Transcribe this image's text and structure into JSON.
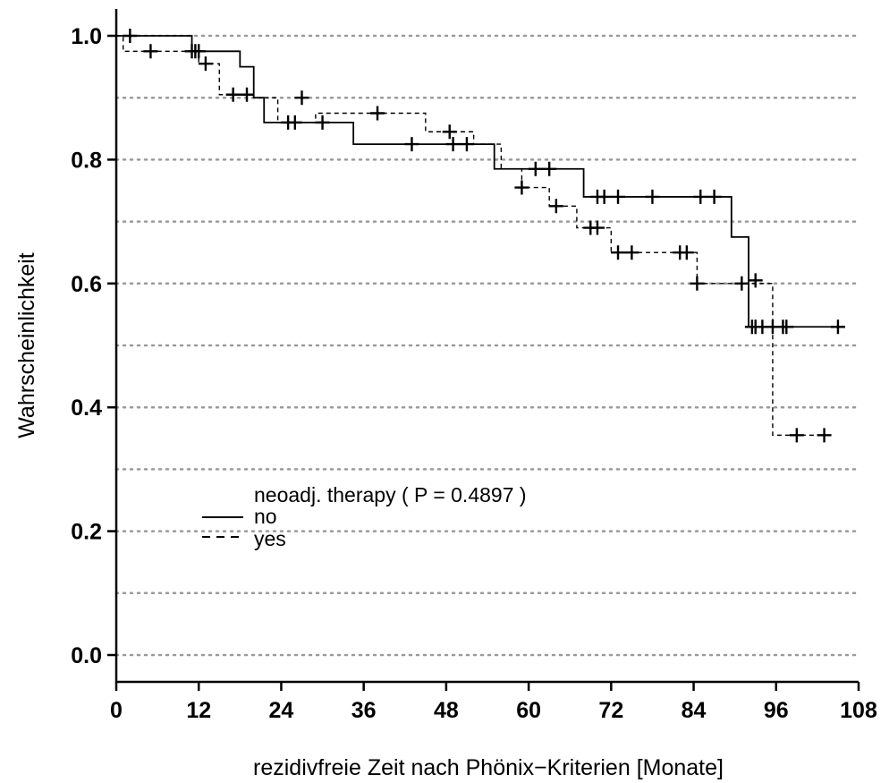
{
  "chart_data": {
    "type": "line",
    "subtype": "kaplan-meier",
    "xlabel": "rezidivfreie Zeit nach Phönix−Kriterien [Monate]",
    "ylabel": "Wahrscheinlichkeit",
    "xlim": [
      0,
      108
    ],
    "ylim": [
      0.0,
      1.0
    ],
    "xticks": [
      0,
      12,
      24,
      36,
      48,
      60,
      72,
      84,
      96,
      108
    ],
    "xtick_labels": [
      "0",
      "12",
      "24",
      "36",
      "48",
      "60",
      "72",
      "84",
      "96",
      "108"
    ],
    "yticks": [
      0.0,
      0.2,
      0.4,
      0.6,
      0.8,
      1.0
    ],
    "ytick_labels": [
      "0.0",
      "0.2",
      "0.4",
      "0.6",
      "0.8",
      "1.0"
    ],
    "grid": "horizontal dotted at every 0.1",
    "legend": {
      "title": "neoadj. therapy ( P = 0.4897 )",
      "placement": "lower-left",
      "entries": [
        {
          "label": "no",
          "style": "solid"
        },
        {
          "label": "yes",
          "style": "dashed"
        }
      ]
    },
    "series": [
      {
        "name": "no",
        "style": "solid",
        "steps": [
          [
            0,
            1.0
          ],
          [
            11,
            0.975
          ],
          [
            18,
            0.95
          ],
          [
            20,
            0.9
          ],
          [
            21.5,
            0.86
          ],
          [
            34.5,
            0.825
          ],
          [
            55,
            0.785
          ],
          [
            68,
            0.74
          ],
          [
            89.5,
            0.675
          ],
          [
            92,
            0.53
          ],
          [
            105,
            0.53
          ]
        ],
        "censored": [
          [
            2,
            1.0
          ],
          [
            11.5,
            0.975
          ],
          [
            12,
            0.975
          ],
          [
            70,
            0.74
          ],
          [
            71,
            0.74
          ],
          [
            73,
            0.74
          ],
          [
            78,
            0.74
          ],
          [
            85,
            0.74
          ],
          [
            87,
            0.74
          ],
          [
            92.5,
            0.53
          ],
          [
            93,
            0.53
          ],
          [
            94,
            0.53
          ],
          [
            95.5,
            0.53
          ],
          [
            97,
            0.53
          ],
          [
            97.5,
            0.53
          ],
          [
            105,
            0.53
          ]
        ]
      },
      {
        "name": "yes",
        "style": "dashed",
        "steps": [
          [
            0,
            1.0
          ],
          [
            1,
            0.975
          ],
          [
            12,
            0.955
          ],
          [
            15,
            0.905
          ],
          [
            20,
            0.9
          ],
          [
            23.5,
            0.86
          ],
          [
            29,
            0.875
          ],
          [
            45,
            0.845
          ],
          [
            52,
            0.825
          ],
          [
            56,
            0.785
          ],
          [
            59,
            0.755
          ],
          [
            63,
            0.725
          ],
          [
            67,
            0.69
          ],
          [
            72,
            0.65
          ],
          [
            84.5,
            0.6
          ],
          [
            92,
            0.6
          ],
          [
            95,
            0.6
          ],
          [
            95.5,
            0.355
          ],
          [
            103,
            0.355
          ]
        ],
        "censored": [
          [
            5,
            0.975
          ],
          [
            11,
            0.975
          ],
          [
            13,
            0.955
          ],
          [
            17,
            0.905
          ],
          [
            19,
            0.905
          ],
          [
            25,
            0.86
          ],
          [
            26,
            0.86
          ],
          [
            27,
            0.9
          ],
          [
            30,
            0.86
          ],
          [
            38,
            0.875
          ],
          [
            43,
            0.825
          ],
          [
            48.5,
            0.845
          ],
          [
            49,
            0.825
          ],
          [
            51,
            0.825
          ],
          [
            61,
            0.785
          ],
          [
            63,
            0.785
          ],
          [
            59,
            0.755
          ],
          [
            64,
            0.725
          ],
          [
            69,
            0.69
          ],
          [
            70,
            0.69
          ],
          [
            73,
            0.65
          ],
          [
            75,
            0.65
          ],
          [
            82,
            0.65
          ],
          [
            83,
            0.65
          ],
          [
            84.5,
            0.6
          ],
          [
            91,
            0.6
          ],
          [
            93,
            0.605
          ],
          [
            99,
            0.355
          ],
          [
            103,
            0.355
          ]
        ]
      }
    ]
  }
}
